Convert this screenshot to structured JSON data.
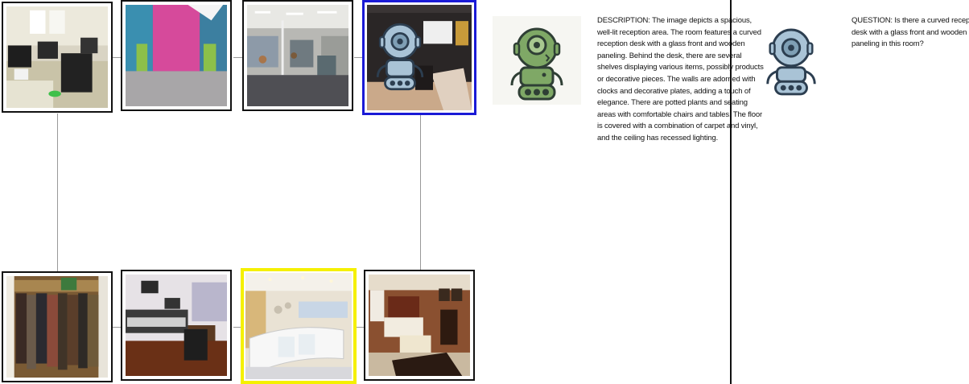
{
  "tiles": [
    {
      "name": "computer-lab",
      "highlight": "none"
    },
    {
      "name": "attic-room",
      "highlight": "none"
    },
    {
      "name": "shopping-hall",
      "highlight": "none"
    },
    {
      "name": "dark-room-with-robot",
      "highlight": "blue"
    },
    {
      "name": "closet",
      "highlight": "none"
    },
    {
      "name": "recording-studio",
      "highlight": "none"
    },
    {
      "name": "reception-area",
      "highlight": "yellow"
    },
    {
      "name": "bedroom",
      "highlight": "none"
    }
  ],
  "colors": {
    "blue_highlight": "#1a1ad6",
    "yellow_highlight": "#f5f000",
    "green_robot": "#7fa866",
    "blue_robot": "#a9c3d6"
  },
  "description": "DESCRIPTION: The image depicts a spacious, well-lit reception area. The room features a curved reception desk with a glass front and wooden paneling. Behind the desk, there are several shelves displaying various items, possibly products or decorative pieces. The walls are adorned with clocks and decorative plates, adding a touch of elegance. There are potted plants and seating areas with comfortable chairs and tables. The floor is covered with a combination of carpet and vinyl, and the ceiling has recessed lighting.",
  "question": "QUESTION: Is there a curved reception desk with a glass front and wooden paneling in this room?"
}
